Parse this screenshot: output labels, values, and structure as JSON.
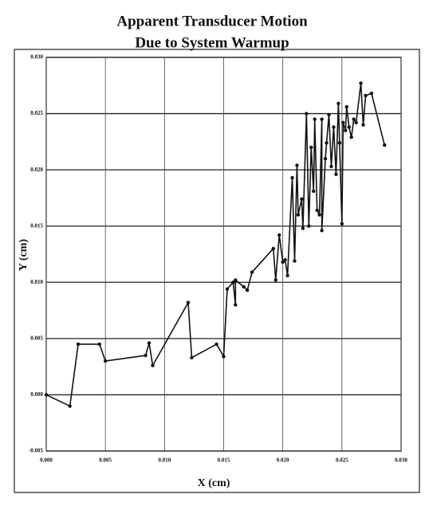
{
  "chart_data": {
    "type": "line",
    "title": [
      "Apparent Transducer Motion",
      "Due to System Warmup"
    ],
    "xlabel": "X (cm)",
    "ylabel": "Y (cm)",
    "xlim": [
      0,
      0.03
    ],
    "ylim": [
      -0.005,
      0.03
    ],
    "xticks": [
      {
        "value": 0,
        "label": "0.000"
      },
      {
        "value": 0.005,
        "label": "0.005"
      },
      {
        "value": 0.01,
        "label": "0.010"
      },
      {
        "value": 0.015,
        "label": "0.015"
      },
      {
        "value": 0.02,
        "label": "0.020"
      },
      {
        "value": 0.025,
        "label": "0.025"
      },
      {
        "value": 0.03,
        "label": "0.030"
      }
    ],
    "yticks": [
      {
        "value": -0.005,
        "label": "-0.005"
      },
      {
        "value": 0,
        "label": "0.000"
      },
      {
        "value": 0.005,
        "label": "0.005"
      },
      {
        "value": 0.01,
        "label": "0.010"
      },
      {
        "value": 0.015,
        "label": "0.015"
      },
      {
        "value": 0.02,
        "label": "0.020"
      },
      {
        "value": 0.025,
        "label": "0.025"
      },
      {
        "value": 0.03,
        "label": "0.030"
      }
    ],
    "grid": true,
    "color": "#111111",
    "x": [
      0,
      0.002,
      0.0027,
      0.0045,
      0.005,
      0.0084,
      0.0087,
      0.009,
      0.012,
      0.0123,
      0.0144,
      0.015,
      0.0153,
      0.0158,
      0.016,
      0.016,
      0.0167,
      0.017,
      0.0174,
      0.0192,
      0.0194,
      0.0197,
      0.02,
      0.0202,
      0.0204,
      0.0208,
      0.021,
      0.0212,
      0.0213,
      0.0216,
      0.0217,
      0.022,
      0.0222,
      0.0224,
      0.0226,
      0.0227,
      0.0229,
      0.0231,
      0.0233,
      0.0233,
      0.0236,
      0.0237,
      0.0239,
      0.0241,
      0.0243,
      0.0245,
      0.0247,
      0.0248,
      0.025,
      0.0251,
      0.0253,
      0.0254,
      0.0256,
      0.0258,
      0.026,
      0.0262,
      0.0266,
      0.0268,
      0.027,
      0.0275,
      0.0286
    ],
    "values": [
      0,
      -0.001,
      0.0045,
      0.0045,
      0.003,
      0.0035,
      0.0046,
      0.0026,
      0.0082,
      0.0033,
      0.0045,
      0.0034,
      0.0094,
      0.01,
      0.008,
      0.0102,
      0.0096,
      0.0093,
      0.0109,
      0.013,
      0.0102,
      0.0142,
      0.0118,
      0.012,
      0.0106,
      0.0193,
      0.0119,
      0.0204,
      0.016,
      0.0174,
      0.0148,
      0.025,
      0.015,
      0.022,
      0.0181,
      0.0245,
      0.0164,
      0.016,
      0.0245,
      0.0146,
      0.021,
      0.0224,
      0.0249,
      0.0203,
      0.0238,
      0.0196,
      0.0259,
      0.0224,
      0.0152,
      0.0242,
      0.0235,
      0.0256,
      0.0238,
      0.0229,
      0.0245,
      0.0242,
      0.0277,
      0.024,
      0.0266,
      0.0268,
      0.0222
    ]
  }
}
